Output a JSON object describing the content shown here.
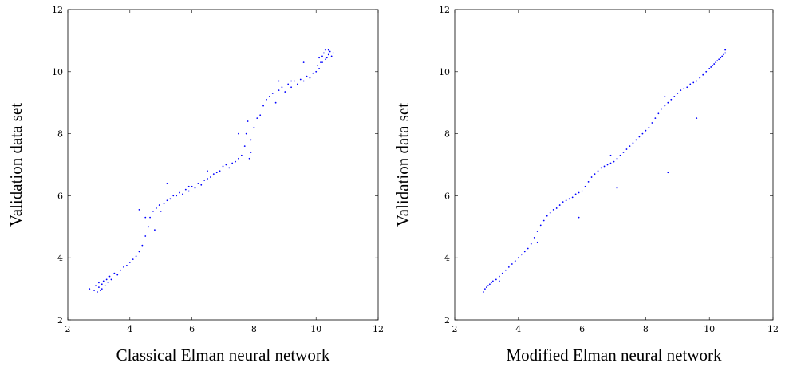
{
  "chart_data": [
    {
      "type": "scatter",
      "xlabel": "Classical Elman neural network",
      "ylabel": "Validation data set",
      "xlim": [
        2,
        12
      ],
      "ylim": [
        2,
        12
      ],
      "xticks": [
        2,
        4,
        6,
        8,
        10,
        12
      ],
      "yticks": [
        2,
        4,
        6,
        8,
        10,
        12
      ],
      "grid": false,
      "marker_color": "#0000ff",
      "series": [
        {
          "points": [
            [
              2.7,
              3.0
            ],
            [
              2.85,
              2.95
            ],
            [
              2.9,
              3.1
            ],
            [
              2.95,
              2.9
            ],
            [
              3.0,
              3.05
            ],
            [
              3.0,
              3.2
            ],
            [
              3.05,
              2.95
            ],
            [
              3.1,
              3.15
            ],
            [
              3.1,
              3.0
            ],
            [
              3.15,
              3.25
            ],
            [
              3.2,
              3.1
            ],
            [
              3.25,
              3.3
            ],
            [
              3.3,
              3.2
            ],
            [
              3.35,
              3.4
            ],
            [
              3.4,
              3.3
            ],
            [
              3.5,
              3.5
            ],
            [
              3.6,
              3.45
            ],
            [
              3.7,
              3.6
            ],
            [
              3.8,
              3.7
            ],
            [
              3.9,
              3.75
            ],
            [
              4.0,
              3.85
            ],
            [
              4.1,
              3.95
            ],
            [
              4.2,
              4.05
            ],
            [
              4.3,
              4.2
            ],
            [
              4.4,
              4.4
            ],
            [
              4.5,
              4.7
            ],
            [
              4.6,
              5.0
            ],
            [
              4.65,
              5.3
            ],
            [
              4.75,
              5.5
            ],
            [
              4.8,
              4.9
            ],
            [
              4.85,
              5.6
            ],
            [
              4.95,
              5.7
            ],
            [
              5.0,
              5.5
            ],
            [
              5.1,
              5.75
            ],
            [
              5.2,
              5.85
            ],
            [
              5.3,
              5.9
            ],
            [
              5.4,
              6.0
            ],
            [
              5.5,
              6.0
            ],
            [
              5.6,
              6.1
            ],
            [
              5.7,
              6.05
            ],
            [
              5.8,
              6.2
            ],
            [
              5.9,
              6.15
            ],
            [
              6.0,
              6.3
            ],
            [
              6.1,
              6.25
            ],
            [
              6.2,
              6.4
            ],
            [
              6.3,
              6.35
            ],
            [
              6.4,
              6.5
            ],
            [
              6.5,
              6.55
            ],
            [
              6.6,
              6.6
            ],
            [
              6.7,
              6.7
            ],
            [
              6.8,
              6.75
            ],
            [
              6.9,
              6.8
            ],
            [
              7.0,
              6.95
            ],
            [
              7.1,
              7.0
            ],
            [
              7.2,
              6.9
            ],
            [
              7.3,
              7.05
            ],
            [
              7.4,
              7.1
            ],
            [
              7.5,
              7.2
            ],
            [
              7.6,
              7.3
            ],
            [
              7.7,
              7.6
            ],
            [
              7.75,
              8.0
            ],
            [
              7.8,
              8.4
            ],
            [
              7.85,
              7.2
            ],
            [
              7.9,
              7.8
            ],
            [
              8.0,
              8.2
            ],
            [
              8.1,
              8.5
            ],
            [
              8.2,
              8.6
            ],
            [
              8.3,
              8.9
            ],
            [
              8.4,
              9.1
            ],
            [
              8.5,
              9.2
            ],
            [
              8.6,
              9.3
            ],
            [
              8.7,
              9.0
            ],
            [
              8.8,
              9.4
            ],
            [
              8.9,
              9.5
            ],
            [
              9.0,
              9.35
            ],
            [
              9.1,
              9.6
            ],
            [
              9.2,
              9.5
            ],
            [
              9.3,
              9.7
            ],
            [
              9.4,
              9.6
            ],
            [
              9.5,
              9.75
            ],
            [
              9.6,
              9.7
            ],
            [
              9.7,
              9.85
            ],
            [
              9.8,
              9.8
            ],
            [
              9.9,
              9.95
            ],
            [
              10.0,
              10.0
            ],
            [
              10.05,
              10.2
            ],
            [
              10.1,
              10.1
            ],
            [
              10.15,
              10.3
            ],
            [
              10.2,
              10.5
            ],
            [
              10.25,
              10.6
            ],
            [
              10.3,
              10.7
            ],
            [
              10.35,
              10.45
            ],
            [
              10.4,
              10.55
            ],
            [
              10.45,
              10.65
            ],
            [
              10.5,
              10.5
            ],
            [
              10.55,
              10.6
            ],
            [
              10.3,
              10.4
            ],
            [
              10.2,
              10.3
            ],
            [
              10.4,
              10.7
            ],
            [
              10.1,
              10.45
            ],
            [
              9.6,
              10.3
            ],
            [
              9.2,
              9.7
            ],
            [
              8.8,
              9.7
            ],
            [
              7.9,
              7.4
            ],
            [
              7.5,
              8.0
            ],
            [
              6.5,
              6.8
            ],
            [
              5.9,
              6.3
            ],
            [
              5.2,
              6.4
            ],
            [
              4.5,
              5.3
            ],
            [
              4.3,
              5.55
            ]
          ]
        }
      ]
    },
    {
      "type": "scatter",
      "xlabel": "Modified Elman neural network",
      "ylabel": "Validation data set",
      "xlim": [
        2,
        12
      ],
      "ylim": [
        2,
        12
      ],
      "xticks": [
        2,
        4,
        6,
        8,
        10,
        12
      ],
      "yticks": [
        2,
        4,
        6,
        8,
        10,
        12
      ],
      "grid": false,
      "marker_color": "#0000ff",
      "series": [
        {
          "points": [
            [
              2.9,
              2.9
            ],
            [
              2.95,
              3.0
            ],
            [
              3.0,
              3.05
            ],
            [
              3.05,
              3.1
            ],
            [
              3.1,
              3.15
            ],
            [
              3.15,
              3.2
            ],
            [
              3.2,
              3.25
            ],
            [
              3.3,
              3.3
            ],
            [
              3.4,
              3.4
            ],
            [
              3.5,
              3.5
            ],
            [
              3.6,
              3.6
            ],
            [
              3.7,
              3.7
            ],
            [
              3.8,
              3.8
            ],
            [
              3.9,
              3.9
            ],
            [
              4.0,
              4.0
            ],
            [
              4.1,
              4.1
            ],
            [
              4.2,
              4.2
            ],
            [
              4.3,
              4.3
            ],
            [
              4.4,
              4.45
            ],
            [
              4.5,
              4.65
            ],
            [
              4.6,
              4.85
            ],
            [
              4.7,
              5.05
            ],
            [
              4.8,
              5.2
            ],
            [
              4.9,
              5.35
            ],
            [
              5.0,
              5.45
            ],
            [
              5.1,
              5.55
            ],
            [
              5.2,
              5.6
            ],
            [
              5.3,
              5.7
            ],
            [
              5.4,
              5.8
            ],
            [
              5.5,
              5.85
            ],
            [
              5.6,
              5.9
            ],
            [
              5.7,
              5.95
            ],
            [
              5.8,
              6.05
            ],
            [
              5.9,
              6.1
            ],
            [
              6.0,
              6.15
            ],
            [
              6.1,
              6.3
            ],
            [
              6.2,
              6.45
            ],
            [
              6.3,
              6.6
            ],
            [
              6.4,
              6.7
            ],
            [
              6.5,
              6.8
            ],
            [
              6.6,
              6.9
            ],
            [
              6.7,
              6.95
            ],
            [
              6.8,
              7.0
            ],
            [
              6.9,
              7.05
            ],
            [
              7.0,
              7.1
            ],
            [
              7.1,
              7.2
            ],
            [
              7.2,
              7.3
            ],
            [
              7.3,
              7.4
            ],
            [
              7.4,
              7.5
            ],
            [
              7.5,
              7.6
            ],
            [
              7.6,
              7.7
            ],
            [
              7.7,
              7.8
            ],
            [
              7.8,
              7.9
            ],
            [
              7.9,
              8.0
            ],
            [
              8.0,
              8.1
            ],
            [
              8.1,
              8.2
            ],
            [
              8.2,
              8.35
            ],
            [
              8.3,
              8.5
            ],
            [
              8.4,
              8.65
            ],
            [
              8.5,
              8.8
            ],
            [
              8.6,
              8.9
            ],
            [
              8.7,
              9.0
            ],
            [
              8.8,
              9.1
            ],
            [
              8.9,
              9.2
            ],
            [
              9.0,
              9.3
            ],
            [
              9.1,
              9.4
            ],
            [
              9.2,
              9.45
            ],
            [
              9.3,
              9.5
            ],
            [
              9.4,
              9.6
            ],
            [
              9.5,
              9.65
            ],
            [
              9.6,
              9.7
            ],
            [
              9.7,
              9.8
            ],
            [
              9.8,
              9.9
            ],
            [
              9.9,
              10.0
            ],
            [
              10.0,
              10.1
            ],
            [
              10.1,
              10.2
            ],
            [
              10.2,
              10.3
            ],
            [
              10.3,
              10.4
            ],
            [
              10.4,
              10.5
            ],
            [
              10.5,
              10.6
            ],
            [
              10.5,
              10.7
            ],
            [
              10.45,
              10.55
            ],
            [
              10.35,
              10.45
            ],
            [
              10.25,
              10.35
            ],
            [
              10.15,
              10.25
            ],
            [
              10.05,
              10.15
            ],
            [
              8.7,
              6.75
            ],
            [
              9.6,
              8.5
            ],
            [
              7.1,
              6.25
            ],
            [
              5.9,
              5.3
            ],
            [
              8.6,
              9.2
            ],
            [
              6.9,
              7.3
            ],
            [
              3.4,
              3.25
            ],
            [
              4.6,
              4.5
            ]
          ]
        }
      ]
    }
  ]
}
